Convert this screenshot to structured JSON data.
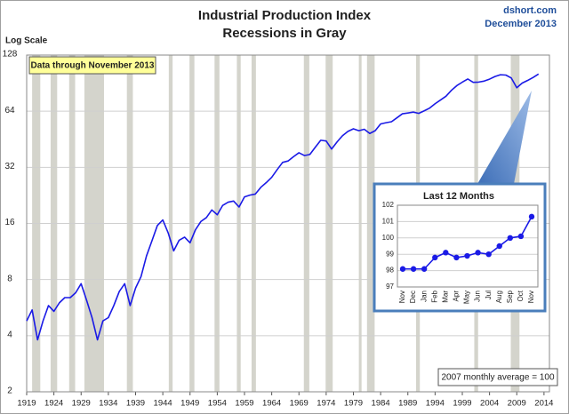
{
  "header": {
    "source": "dshort.com",
    "date": "December 2013"
  },
  "chart_data": [
    {
      "type": "line",
      "title": "Industrial Production Index",
      "subtitle": "Recessions in Gray",
      "y_label": "Log Scale",
      "annotations": [
        "Data through November 2013",
        "2007 monthly average = 100"
      ],
      "log_scale": true,
      "grid": true,
      "xlim": [
        1919,
        2015
      ],
      "xticks": [
        1919,
        1924,
        1929,
        1934,
        1939,
        1944,
        1949,
        1954,
        1959,
        1964,
        1969,
        1974,
        1979,
        1984,
        1989,
        1994,
        1999,
        2004,
        2009,
        2014
      ],
      "ylim": [
        2,
        128
      ],
      "yticks": [
        2,
        4,
        8,
        16,
        32,
        64,
        128
      ],
      "recession_color": "#d4d4cc",
      "recessions": [
        {
          "start": 1920.0,
          "end": 1921.5
        },
        {
          "start": 1923.4,
          "end": 1924.6
        },
        {
          "start": 1926.8,
          "end": 1927.9
        },
        {
          "start": 1929.6,
          "end": 1933.2
        },
        {
          "start": 1937.4,
          "end": 1938.5
        },
        {
          "start": 1945.1,
          "end": 1945.8
        },
        {
          "start": 1948.9,
          "end": 1949.8
        },
        {
          "start": 1953.5,
          "end": 1954.4
        },
        {
          "start": 1957.6,
          "end": 1958.3
        },
        {
          "start": 1960.3,
          "end": 1961.1
        },
        {
          "start": 1969.9,
          "end": 1970.9
        },
        {
          "start": 1973.9,
          "end": 1975.2
        },
        {
          "start": 1980.0,
          "end": 1980.5
        },
        {
          "start": 1981.5,
          "end": 1982.9
        },
        {
          "start": 1990.5,
          "end": 1991.2
        },
        {
          "start": 2001.2,
          "end": 2001.9
        },
        {
          "start": 2007.9,
          "end": 2009.5
        }
      ],
      "x": [
        1919,
        1920,
        1921,
        1922,
        1923,
        1924,
        1925,
        1926,
        1927,
        1928,
        1929,
        1930,
        1931,
        1932,
        1933,
        1934,
        1935,
        1936,
        1937,
        1938,
        1939,
        1940,
        1941,
        1942,
        1943,
        1944,
        1945,
        1946,
        1947,
        1948,
        1949,
        1950,
        1951,
        1952,
        1953,
        1954,
        1955,
        1956,
        1957,
        1958,
        1959,
        1960,
        1961,
        1962,
        1963,
        1964,
        1965,
        1966,
        1967,
        1968,
        1969,
        1970,
        1971,
        1972,
        1973,
        1974,
        1975,
        1976,
        1977,
        1978,
        1979,
        1980,
        1981,
        1982,
        1983,
        1984,
        1985,
        1986,
        1987,
        1988,
        1989,
        1990,
        1991,
        1992,
        1993,
        1994,
        1995,
        1996,
        1997,
        1998,
        1999,
        2000,
        2001,
        2002,
        2003,
        2004,
        2005,
        2006,
        2007,
        2008,
        2009,
        2010,
        2011,
        2012,
        2013
      ],
      "series": [
        {
          "name": "Industrial Production Index",
          "color": "#1a1ae6",
          "values": [
            4.8,
            5.5,
            3.8,
            4.8,
            5.8,
            5.4,
            6.0,
            6.4,
            6.4,
            6.8,
            7.6,
            6.2,
            5.0,
            3.8,
            4.8,
            5.0,
            5.8,
            6.9,
            7.6,
            5.8,
            7.2,
            8.3,
            10.7,
            12.9,
            15.6,
            16.7,
            14.2,
            11.4,
            13.0,
            13.5,
            12.6,
            14.8,
            16.4,
            17.2,
            18.9,
            17.8,
            20.0,
            20.8,
            21.1,
            19.6,
            22.2,
            22.7,
            23.0,
            25.0,
            26.5,
            28.3,
            31.1,
            34.0,
            34.6,
            36.5,
            38.3,
            37.0,
            37.5,
            41.0,
            44.7,
            44.3,
            40.1,
            43.8,
            47.3,
            49.9,
            51.5,
            50.3,
            51.2,
            48.6,
            50.3,
            54.7,
            55.5,
            56.2,
            59.0,
            62.0,
            62.6,
            63.3,
            62.3,
            64.3,
            66.5,
            70.2,
            73.5,
            77.0,
            82.8,
            87.8,
            91.6,
            95.3,
            91.4,
            91.7,
            92.8,
            95.1,
            98.2,
            100.4,
            100.0,
            96.4,
            85.5,
            90.6,
            93.6,
            97.1,
            101.3
          ]
        }
      ]
    },
    {
      "type": "line",
      "title": "Last 12 Months",
      "grid": true,
      "categories": [
        "Nov",
        "Dec",
        "Jan",
        "Feb",
        "Mar",
        "Apr",
        "May",
        "Jun",
        "Jul",
        "Aug",
        "Sep",
        "Oct",
        "Nov"
      ],
      "ylim": [
        97,
        102
      ],
      "yticks": [
        97,
        98,
        99,
        100,
        101,
        102
      ],
      "series": [
        {
          "name": "Last 12 Months",
          "color": "#1a1ae6",
          "values": [
            98.1,
            98.1,
            98.1,
            98.8,
            99.1,
            98.8,
            98.9,
            99.1,
            99.0,
            99.5,
            100.0,
            100.1,
            101.3
          ]
        }
      ]
    }
  ]
}
